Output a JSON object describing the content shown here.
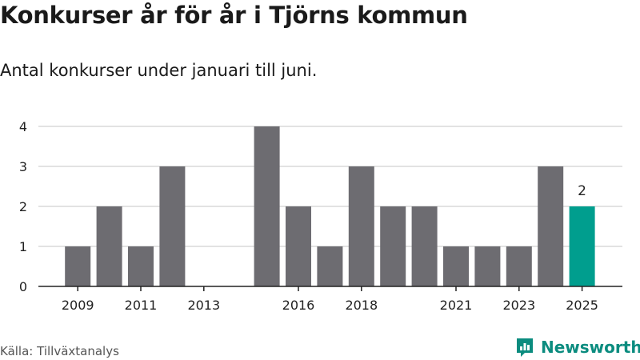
{
  "title": "Konkurser år för år i Tjörns kommun",
  "subtitle": "Antal konkurser under januari till juni.",
  "source": "Källa: Tillväxtanalys",
  "logo": {
    "text": "Newsworthy"
  },
  "colors": {
    "bar": "#6d6c71",
    "highlight": "#009e8e",
    "grid": "#d9d9d9",
    "axis": "#222222",
    "logo": "#0b8c7f"
  },
  "chart_data": {
    "type": "bar",
    "title": "Konkurser år för år i Tjörns kommun",
    "subtitle": "Antal konkurser under januari till juni.",
    "xlabel": "",
    "ylabel": "",
    "categories": [
      "2009",
      "2010",
      "2011",
      "2012",
      "2013",
      "2014",
      "2015",
      "2016",
      "2017",
      "2018",
      "2019",
      "2020",
      "2021",
      "2022",
      "2023",
      "2024",
      "2025"
    ],
    "values": [
      1,
      2,
      1,
      3,
      0,
      0,
      4,
      2,
      1,
      3,
      2,
      2,
      1,
      1,
      1,
      3,
      2
    ],
    "x_tick_labels": [
      "2009",
      "2011",
      "2013",
      "2016",
      "2018",
      "2021",
      "2023",
      "2025"
    ],
    "y_ticks": [
      0,
      1,
      2,
      3,
      4
    ],
    "ylim": [
      0,
      4
    ],
    "grid": true,
    "highlight": {
      "category": "2025",
      "label": "2"
    }
  }
}
